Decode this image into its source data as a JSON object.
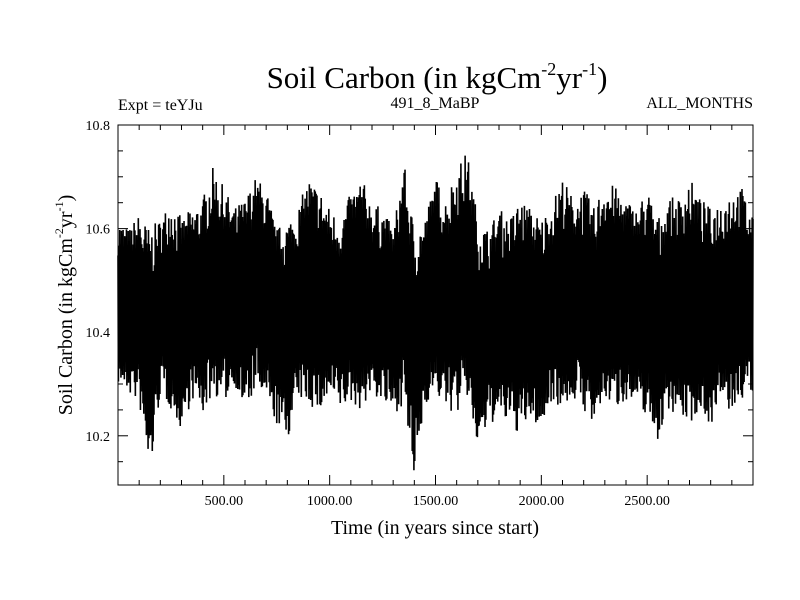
{
  "chart_data": {
    "type": "line",
    "title": "Soil Carbon (in kgCm",
    "title_sup1": "-2",
    "title_mid": "yr",
    "title_sup2": "-1",
    "title_end": ")",
    "subtitle_left": "Expt = teYJu",
    "subtitle_center": "491_8_MaBP",
    "subtitle_right": "ALL_MONTHS",
    "xlabel": "Time (in years since start)",
    "ylabel": "Soil Carbon (in kgCm",
    "ylabel_sup1": "-2",
    "ylabel_mid": "yr",
    "ylabel_sup2": "-1",
    "ylabel_end": ")",
    "xlim": [
      0,
      3000
    ],
    "ylim": [
      10.105,
      10.8
    ],
    "xticks": [
      500,
      1000,
      1500,
      2000,
      2500
    ],
    "xtick_labels": [
      "500.00",
      "1000.00",
      "1500.00",
      "2000.00",
      "2500.00"
    ],
    "yticks": [
      10.2,
      10.4,
      10.6,
      10.8
    ],
    "ytick_labels": [
      "10.2",
      "10.4",
      "10.6",
      "10.8"
    ],
    "grid": false,
    "series_color": "#000000",
    "envelope": {
      "x": [
        0,
        50,
        100,
        150,
        200,
        250,
        300,
        350,
        400,
        450,
        500,
        550,
        600,
        650,
        700,
        750,
        800,
        850,
        900,
        950,
        1000,
        1050,
        1100,
        1150,
        1200,
        1250,
        1300,
        1350,
        1400,
        1450,
        1500,
        1550,
        1600,
        1650,
        1700,
        1750,
        1800,
        1850,
        1900,
        1950,
        2000,
        2050,
        2100,
        2150,
        2200,
        2250,
        2300,
        2350,
        2400,
        2450,
        2500,
        2550,
        2600,
        2650,
        2700,
        2750,
        2800,
        2850,
        2900,
        2950,
        3000
      ],
      "upper": [
        10.62,
        10.6,
        10.63,
        10.6,
        10.62,
        10.66,
        10.62,
        10.64,
        10.66,
        10.72,
        10.68,
        10.64,
        10.66,
        10.7,
        10.68,
        10.6,
        10.62,
        10.64,
        10.7,
        10.68,
        10.64,
        10.62,
        10.67,
        10.7,
        10.65,
        10.64,
        10.6,
        10.73,
        10.6,
        10.62,
        10.7,
        10.66,
        10.72,
        10.75,
        10.62,
        10.6,
        10.64,
        10.62,
        10.66,
        10.64,
        10.62,
        10.65,
        10.7,
        10.66,
        10.68,
        10.64,
        10.7,
        10.68,
        10.66,
        10.64,
        10.68,
        10.62,
        10.66,
        10.66,
        10.7,
        10.66,
        10.64,
        10.66,
        10.68,
        10.68,
        10.62
      ],
      "lower": [
        10.3,
        10.28,
        10.26,
        10.12,
        10.28,
        10.25,
        10.21,
        10.27,
        10.24,
        10.28,
        10.26,
        10.3,
        10.24,
        10.29,
        10.26,
        10.22,
        10.19,
        10.27,
        10.26,
        10.24,
        10.27,
        10.25,
        10.26,
        10.25,
        10.28,
        10.26,
        10.24,
        10.26,
        10.11,
        10.26,
        10.28,
        10.25,
        10.24,
        10.27,
        10.17,
        10.22,
        10.23,
        10.22,
        10.2,
        10.23,
        10.21,
        10.27,
        10.25,
        10.27,
        10.25,
        10.21,
        10.27,
        10.25,
        10.27,
        10.25,
        10.24,
        10.19,
        10.25,
        10.24,
        10.22,
        10.25,
        10.22,
        10.26,
        10.24,
        10.27,
        10.28
      ]
    }
  }
}
